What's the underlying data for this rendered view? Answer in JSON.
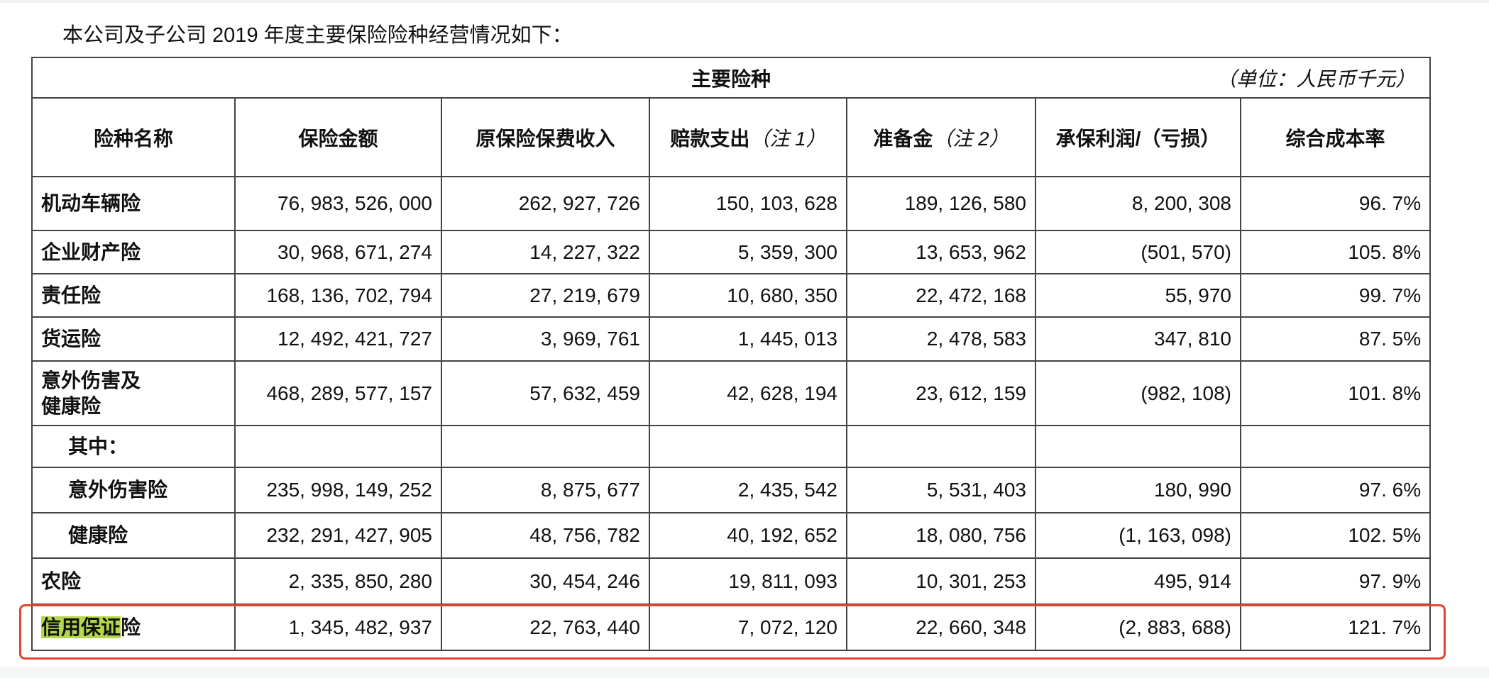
{
  "intro": "本公司及子公司 2019 年度主要保险险种经营情况如下：",
  "table": {
    "title": "主要险种",
    "unit": "（单位：人民币千元）",
    "headers": [
      {
        "label": "险种名称",
        "note": ""
      },
      {
        "label": "保险金额",
        "note": ""
      },
      {
        "label": "原保险保费收入",
        "note": ""
      },
      {
        "label": "赔款支出",
        "note": "（注 1）"
      },
      {
        "label": "准备金",
        "note": "（注 2）"
      },
      {
        "label": "承保利润/（亏损）",
        "note": ""
      },
      {
        "label": "综合成本率",
        "note": ""
      }
    ],
    "rows": [
      {
        "name": "机动车辆险",
        "values": [
          "76, 983, 526, 000",
          "262, 927, 726",
          "150, 103, 628",
          "189, 126, 580",
          "8, 200, 308",
          "96. 7%"
        ]
      },
      {
        "name": "企业财产险",
        "values": [
          "30, 968, 671, 274",
          "14, 227, 322",
          "5, 359, 300",
          "13, 653, 962",
          "(501, 570)",
          "105. 8%"
        ]
      },
      {
        "name": "责任险",
        "values": [
          "168, 136, 702, 794",
          "27, 219, 679",
          "10, 680, 350",
          "22, 472, 168",
          "55, 970",
          "99. 7%"
        ]
      },
      {
        "name": "货运险",
        "values": [
          "12, 492, 421, 727",
          "3, 969, 761",
          "1, 445, 013",
          "2, 478, 583",
          "347, 810",
          "87. 5%"
        ]
      },
      {
        "name_line1": "意外伤害及",
        "name_line2": "健康险",
        "values": [
          "468, 289, 577, 157",
          "57, 632, 459",
          "42, 628, 194",
          "23, 612, 159",
          "(982, 108)",
          "101. 8%"
        ]
      },
      {
        "name": "其中："
      },
      {
        "name": "意外伤害险",
        "values": [
          "235, 998, 149, 252",
          "8, 875, 677",
          "2, 435, 542",
          "5, 531, 403",
          "180, 990",
          "97. 6%"
        ]
      },
      {
        "name": "健康险",
        "values": [
          "232, 291, 427, 905",
          "48, 756, 782",
          "40, 192, 652",
          "18, 080, 756",
          "(1, 163, 098)",
          "102. 5%"
        ]
      },
      {
        "name": "农险",
        "values": [
          "2, 335, 850, 280",
          "30, 454, 246",
          "19, 811, 093",
          "10, 301, 253",
          "495, 914",
          "97. 9%"
        ]
      },
      {
        "name_highlight": "信用保证",
        "name_rest": "险",
        "values": [
          "1, 345, 482, 937",
          "22, 763, 440",
          "7, 072, 120",
          "22, 660, 348",
          "(2, 883, 688)",
          "121. 7%"
        ]
      }
    ]
  },
  "colors": {
    "highlight": "#b5d84a",
    "annotation_box": "#e0452f"
  }
}
